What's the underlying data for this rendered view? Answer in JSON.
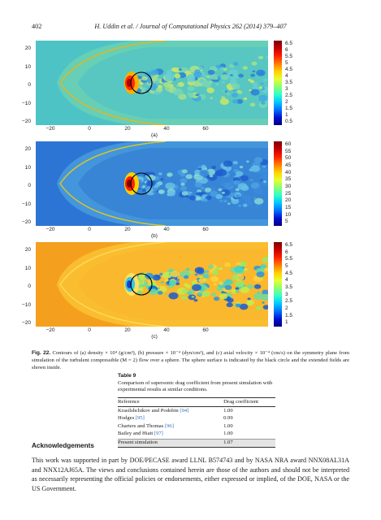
{
  "header": {
    "page_number": "402",
    "journal": "H. Uddin et al. / Journal of Computational Physics 262 (2014) 379–407"
  },
  "panels": [
    {
      "label": "(a)",
      "yticks": [
        "20",
        "10",
        "0",
        "−10",
        "−20"
      ],
      "xticks": [
        "−20",
        "0",
        "20",
        "40",
        "60"
      ],
      "colorbar": [
        "6.5",
        "6",
        "5.5",
        "5",
        "4.5",
        "4",
        "3.5",
        "3",
        "2.5",
        "2",
        "1.5",
        "1",
        "0.5"
      ],
      "colormap": "jet",
      "background": "#4fc2c8"
    },
    {
      "label": "(b)",
      "yticks": [
        "20",
        "10",
        "0",
        "−10",
        "−20"
      ],
      "xticks": [
        "−20",
        "0",
        "20",
        "40",
        "60"
      ],
      "colorbar": [
        "60",
        "55",
        "50",
        "45",
        "40",
        "35",
        "30",
        "25",
        "20",
        "15",
        "10",
        "5"
      ],
      "colormap": "jet",
      "background": "#2f7ad6"
    },
    {
      "label": "(c)",
      "yticks": [
        "20",
        "10",
        "0",
        "−10",
        "−20"
      ],
      "xticks": [
        "−20",
        "0",
        "20",
        "40",
        "60"
      ],
      "colorbar": [
        "6.5",
        "6",
        "5.5",
        "5",
        "4.5",
        "4",
        "3.5",
        "3",
        "2.5",
        "2",
        "1.5",
        "1"
      ],
      "colormap": "jet",
      "background": "#f5a623"
    }
  ],
  "figure_caption": {
    "label": "Fig. 22.",
    "text": "Contours of (a) density × 10⁴ (g/cm³), (b) pressure × 10⁻⁴ (dyn/cm²), and (c) axial velocity × 10⁻⁴ (cm/s) on the symmetry plane from simulation of the turbulent compressible (M = 2) flow over a sphere. The sphere surface is indicated by the black circle and the extended fields are shown inside."
  },
  "table": {
    "title": "Table 9",
    "caption": "Comparison of supersonic drag coefficient from present simulation with experimental results at similar conditions.",
    "columns": [
      "Reference",
      "Drag coefficient"
    ],
    "rows": [
      {
        "ref": "Krasilshchikov and Podobin",
        "cite": "[94]",
        "value": "1.00"
      },
      {
        "ref": "Hodges",
        "cite": "[95]",
        "value": "0.99"
      },
      {
        "ref": "Charters and Thomas",
        "cite": "[96]",
        "value": "1.00"
      },
      {
        "ref": "Bailey and Hiatt",
        "cite": "[97]",
        "value": "1.00"
      },
      {
        "ref": "Present simulation",
        "cite": "",
        "value": "1.07"
      }
    ]
  },
  "acknowledgements": {
    "heading": "Acknowledgements",
    "text": "This work was supported in part by DOE/PECASE award LLNL B574743 and by NASA NRA award NNX08AL31A and NNX12AJ65A. The views and conclusions contained herein are those of the authors and should not be interpreted as necessarily representing the official policies or endorsements, either expressed or implied, of the DOE, NASA or the US Government."
  }
}
